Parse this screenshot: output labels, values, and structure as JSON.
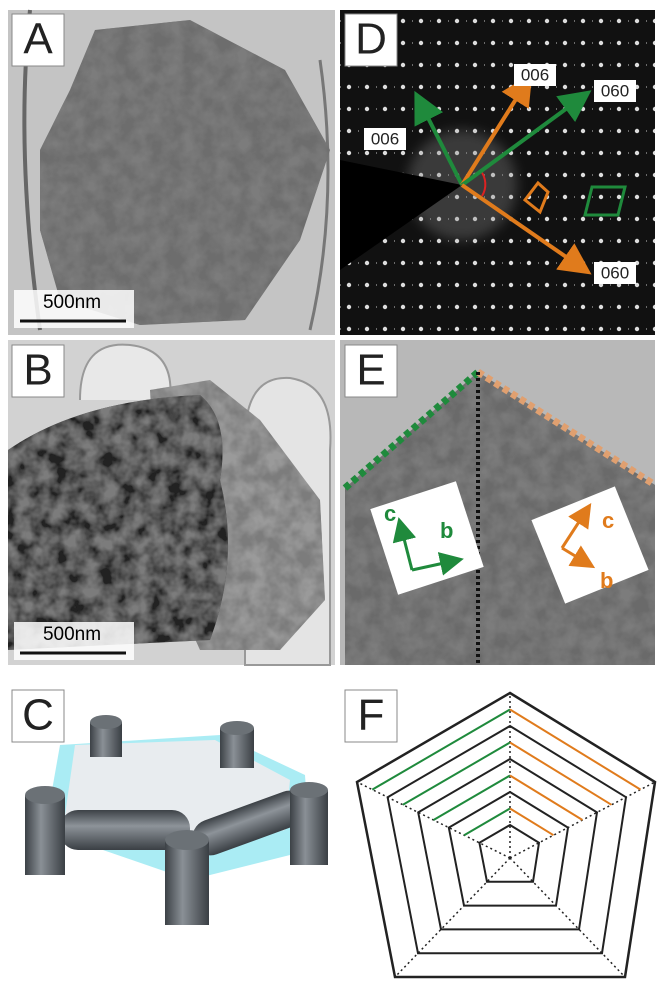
{
  "panels": {
    "a": {
      "label": "A",
      "scale_bar": "500nm"
    },
    "b": {
      "label": "B",
      "scale_bar": "500nm"
    },
    "c": {
      "label": "C"
    },
    "d": {
      "label": "D",
      "annotations": [
        "006",
        "060",
        "006",
        "060"
      ]
    },
    "e": {
      "label": "E",
      "axes_left": [
        "c",
        "b"
      ],
      "axes_right": [
        "c",
        "b"
      ]
    },
    "f": {
      "label": "F"
    }
  }
}
